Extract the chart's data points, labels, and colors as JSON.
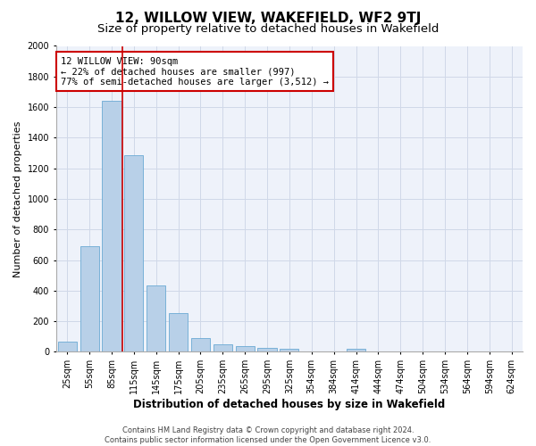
{
  "title": "12, WILLOW VIEW, WAKEFIELD, WF2 9TJ",
  "subtitle": "Size of property relative to detached houses in Wakefield",
  "xlabel": "Distribution of detached houses by size in Wakefield",
  "ylabel": "Number of detached properties",
  "footer_line1": "Contains HM Land Registry data © Crown copyright and database right 2024.",
  "footer_line2": "Contains public sector information licensed under the Open Government Licence v3.0.",
  "bar_color": "#b8d0e8",
  "bar_edge_color": "#6aaad4",
  "property_line_color": "#cc0000",
  "annotation_box_color": "#cc0000",
  "annotation_text": "12 WILLOW VIEW: 90sqm\n← 22% of detached houses are smaller (997)\n77% of semi-detached houses are larger (3,512) →",
  "categories": [
    "25sqm",
    "55sqm",
    "85sqm",
    "115sqm",
    "145sqm",
    "175sqm",
    "205sqm",
    "235sqm",
    "265sqm",
    "295sqm",
    "325sqm",
    "354sqm",
    "384sqm",
    "414sqm",
    "444sqm",
    "474sqm",
    "504sqm",
    "534sqm",
    "564sqm",
    "594sqm",
    "624sqm"
  ],
  "values": [
    65,
    690,
    1640,
    1285,
    435,
    255,
    88,
    50,
    38,
    28,
    18,
    0,
    0,
    20,
    0,
    0,
    0,
    0,
    0,
    0,
    0
  ],
  "property_bar_index": 2,
  "ylim": [
    0,
    2000
  ],
  "yticks": [
    0,
    200,
    400,
    600,
    800,
    1000,
    1200,
    1400,
    1600,
    1800,
    2000
  ],
  "grid_color": "#d0d8e8",
  "background_color": "#eef2fa",
  "fig_bg_color": "#ffffff",
  "title_fontsize": 11,
  "subtitle_fontsize": 9.5,
  "xlabel_fontsize": 8.5,
  "ylabel_fontsize": 8,
  "tick_fontsize": 7,
  "annotation_fontsize": 7.5
}
